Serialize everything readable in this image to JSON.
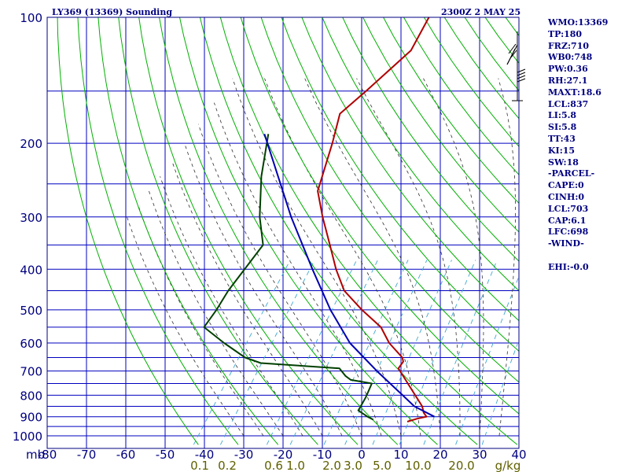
{
  "header": {
    "title": "LY369 (13369) Sounding",
    "datetime": "2300Z  2 MAY 25"
  },
  "stats": [
    "WMO:13369",
    "TP:180",
    "FRZ:710",
    "WB0:748",
    "PW:0.36",
    "RH:27.1",
    "MAXT:18.6",
    "LCL:837",
    "LI:5.8",
    "SI:5.8",
    "TT:43",
    "KI:15",
    "SW:18",
    "-PARCEL-",
    "CAPE:0",
    "CINH:0",
    "LCL:703",
    "CAP:6.1",
    "LFC:698",
    "-WIND-",
    "",
    "EHI:-0.0"
  ],
  "colors": {
    "frame": "#000080",
    "grid": "#0000c0",
    "dry_adiabat": "#00b000",
    "moist_adiabat": "#303030",
    "mixing_ratio": "#3fa8d0",
    "temperature": "#b00000",
    "dewpoint": "#004000",
    "parcel": "#0000b0",
    "tick_labels": "#000080",
    "mixing_labels": "#606000"
  },
  "chart_data": {
    "type": "line",
    "title": "LY369 (13369) Sounding",
    "subtitle": "2300Z  2 MAY 25",
    "y_scale": "log",
    "y_unit": "mb",
    "x_unit": "°C",
    "ylim": [
      1000,
      100
    ],
    "xlim": [
      -80,
      40
    ],
    "x_ticks": [
      -80,
      -70,
      -60,
      -50,
      -40,
      -30,
      -20,
      -10,
      0,
      10,
      20,
      30,
      40
    ],
    "x_tick_labels": [
      "-80",
      "-70",
      "-60",
      "-50",
      "-40",
      "-30",
      "-20",
      "-10",
      "0",
      "10",
      "20",
      "30",
      "40"
    ],
    "x_axis_prefix": "mb",
    "y_ticks": [
      100,
      200,
      300,
      400,
      500,
      600,
      700,
      800,
      900,
      1000
    ],
    "y_tick_labels": [
      "100",
      "200",
      "300",
      "400",
      "500",
      "600",
      "700",
      "800",
      "900",
      "1000"
    ],
    "mixing_ratio_labels": [
      "0.1",
      "0.2",
      "0.6",
      "1.0",
      "2.0",
      "3.0",
      "5.0",
      "10.0",
      "20.0",
      "g/kg"
    ],
    "grid": true,
    "series": [
      {
        "key": "temperature",
        "points": [
          [
            100,
            -59.5
          ],
          [
            120,
            -58
          ],
          [
            150,
            -62
          ],
          [
            170,
            -64.5
          ],
          [
            200,
            -61
          ],
          [
            260,
            -56
          ],
          [
            300,
            -50
          ],
          [
            350,
            -43
          ],
          [
            400,
            -37
          ],
          [
            450,
            -31
          ],
          [
            500,
            -23
          ],
          [
            550,
            -15
          ],
          [
            600,
            -10
          ],
          [
            650,
            -4
          ],
          [
            665,
            -3
          ],
          [
            690,
            -3
          ],
          [
            760,
            3
          ],
          [
            850,
            10
          ],
          [
            880,
            11.5
          ],
          [
            900,
            13
          ],
          [
            910,
            11
          ],
          [
            925,
            9
          ]
        ]
      },
      {
        "key": "dewpoint",
        "points": [
          [
            190,
            -79
          ],
          [
            240,
            -73
          ],
          [
            300,
            -66
          ],
          [
            350,
            -60
          ],
          [
            450,
            -60.5
          ],
          [
            500,
            -60
          ],
          [
            550,
            -60
          ],
          [
            600,
            -52
          ],
          [
            650,
            -44
          ],
          [
            670,
            -39
          ],
          [
            690,
            -18
          ],
          [
            720,
            -15
          ],
          [
            735,
            -13
          ],
          [
            750,
            -7
          ],
          [
            810,
            -6
          ],
          [
            870,
            -5.5
          ],
          [
            900,
            -2
          ],
          [
            915,
            0
          ]
        ]
      },
      {
        "key": "parcel",
        "points": [
          [
            190,
            -80
          ],
          [
            300,
            -58
          ],
          [
            400,
            -43
          ],
          [
            500,
            -31
          ],
          [
            600,
            -20
          ],
          [
            700,
            -8
          ],
          [
            800,
            3
          ],
          [
            850,
            8
          ],
          [
            900,
            15
          ]
        ]
      }
    ]
  }
}
